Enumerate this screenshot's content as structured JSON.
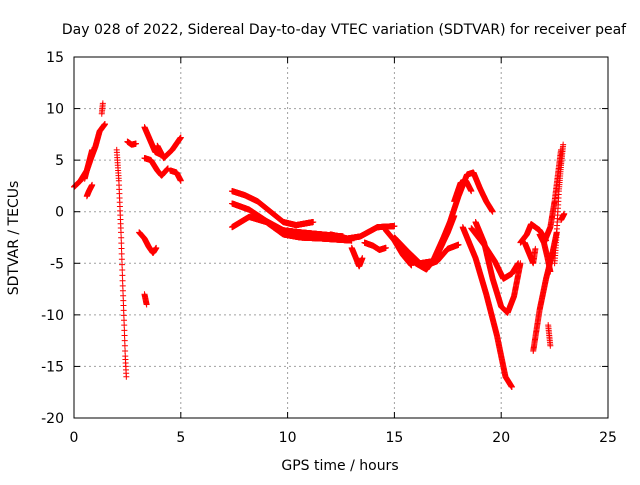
{
  "chart_data": {
    "type": "scatter",
    "title": "Day 028 of 2022, Sidereal Day-to-day VTEC variation (SDTVAR) for receiver peaf",
    "xlabel": "GPS time / hours",
    "ylabel": "SDTVAR / TECUs",
    "xlim": [
      0,
      25
    ],
    "ylim": [
      -20,
      15
    ],
    "xticks": [
      0,
      5,
      10,
      15,
      20,
      25
    ],
    "yticks": [
      -20,
      -15,
      -10,
      -5,
      0,
      5,
      10,
      15
    ],
    "grid": true,
    "marker": "+",
    "series": [
      {
        "name": "SDTVAR",
        "color": "#ff0000",
        "segments": [
          {
            "x0": 0.0,
            "x1": 1.45,
            "points": [
              [
                0.0,
                2.4
              ],
              [
                0.3,
                3.0
              ],
              [
                0.6,
                4.0
              ],
              [
                0.8,
                5.2
              ],
              [
                1.0,
                6.3
              ],
              [
                1.2,
                7.8
              ],
              [
                1.45,
                8.5
              ]
            ]
          },
          {
            "x0": 0.5,
            "x1": 0.85,
            "points": [
              [
                0.5,
                3.2
              ],
              [
                0.7,
                4.8
              ],
              [
                0.85,
                6.0
              ]
            ]
          },
          {
            "x0": 0.6,
            "x1": 0.85,
            "points": [
              [
                0.6,
                1.5
              ],
              [
                0.7,
                2.0
              ],
              [
                0.85,
                2.6
              ]
            ]
          },
          {
            "x0": 1.3,
            "x1": 1.35,
            "points": [
              [
                1.3,
                9.5
              ],
              [
                1.35,
                10.5
              ]
            ]
          },
          {
            "x0": 2.0,
            "x1": 2.45,
            "points": [
              [
                2.0,
                6.0
              ],
              [
                2.1,
                3.0
              ],
              [
                2.2,
                -2.0
              ],
              [
                2.28,
                -7.0
              ],
              [
                2.35,
                -11.0
              ],
              [
                2.4,
                -14.0
              ],
              [
                2.45,
                -16.0
              ]
            ]
          },
          {
            "x0": 2.5,
            "x1": 2.9,
            "points": [
              [
                2.5,
                6.8
              ],
              [
                2.7,
                6.5
              ],
              [
                2.9,
                6.6
              ]
            ]
          },
          {
            "x0": 3.05,
            "x1": 3.85,
            "points": [
              [
                3.05,
                -2.0
              ],
              [
                3.3,
                -2.6
              ],
              [
                3.5,
                -3.4
              ],
              [
                3.7,
                -4.0
              ],
              [
                3.85,
                -3.5
              ]
            ]
          },
          {
            "x0": 3.3,
            "x1": 3.4,
            "points": [
              [
                3.3,
                -8.0
              ],
              [
                3.4,
                -9.0
              ]
            ]
          },
          {
            "x0": 3.3,
            "x1": 4.1,
            "points": [
              [
                3.3,
                8.2
              ],
              [
                3.55,
                7.0
              ],
              [
                3.8,
                5.8
              ],
              [
                4.1,
                5.5
              ]
            ]
          },
          {
            "x0": 3.3,
            "x1": 4.4,
            "points": [
              [
                3.3,
                5.2
              ],
              [
                3.6,
                5.0
              ],
              [
                3.9,
                4.0
              ],
              [
                4.1,
                3.5
              ],
              [
                4.4,
                4.2
              ]
            ]
          },
          {
            "x0": 3.9,
            "x1": 5.0,
            "points": [
              [
                3.9,
                6.4
              ],
              [
                4.2,
                5.2
              ],
              [
                4.6,
                6.0
              ],
              [
                5.0,
                7.2
              ]
            ]
          },
          {
            "x0": 4.5,
            "x1": 5.0,
            "points": [
              [
                4.5,
                4.0
              ],
              [
                4.8,
                3.8
              ],
              [
                5.0,
                3.0
              ]
            ]
          },
          {
            "x0": 7.4,
            "x1": 11.2,
            "points": [
              [
                7.4,
                2.0
              ],
              [
                8.0,
                1.6
              ],
              [
                8.6,
                1.0
              ],
              [
                9.2,
                0.0
              ],
              [
                9.8,
                -1.0
              ],
              [
                10.4,
                -1.3
              ],
              [
                11.2,
                -1.0
              ]
            ]
          },
          {
            "x0": 7.4,
            "x1": 12.6,
            "points": [
              [
                7.4,
                0.8
              ],
              [
                8.2,
                0.2
              ],
              [
                9.0,
                -0.9
              ],
              [
                9.8,
                -1.8
              ],
              [
                10.6,
                -2.0
              ],
              [
                11.6,
                -2.2
              ],
              [
                12.6,
                -2.4
              ]
            ]
          },
          {
            "x0": 7.4,
            "x1": 13.0,
            "points": [
              [
                7.4,
                -1.5
              ],
              [
                8.2,
                -0.5
              ],
              [
                9.0,
                -1.0
              ],
              [
                9.8,
                -2.2
              ],
              [
                10.6,
                -2.5
              ],
              [
                11.6,
                -2.6
              ],
              [
                13.0,
                -2.8
              ]
            ]
          },
          {
            "x0": 12.0,
            "x1": 15.0,
            "points": [
              [
                12.0,
                -2.2
              ],
              [
                12.8,
                -2.6
              ],
              [
                13.4,
                -2.4
              ],
              [
                14.2,
                -1.5
              ],
              [
                15.0,
                -1.4
              ]
            ]
          },
          {
            "x0": 13.0,
            "x1": 13.5,
            "points": [
              [
                13.0,
                -3.5
              ],
              [
                13.2,
                -4.5
              ],
              [
                13.35,
                -5.3
              ],
              [
                13.5,
                -4.5
              ]
            ]
          },
          {
            "x0": 13.6,
            "x1": 14.6,
            "points": [
              [
                13.6,
                -3.0
              ],
              [
                14.0,
                -3.3
              ],
              [
                14.3,
                -3.7
              ],
              [
                14.6,
                -3.5
              ]
            ]
          },
          {
            "x0": 14.6,
            "x1": 15.8,
            "points": [
              [
                14.6,
                -1.8
              ],
              [
                15.0,
                -2.8
              ],
              [
                15.4,
                -4.2
              ],
              [
                15.8,
                -5.2
              ]
            ]
          },
          {
            "x0": 15.0,
            "x1": 17.6,
            "points": [
              [
                15.0,
                -2.5
              ],
              [
                15.6,
                -3.8
              ],
              [
                16.2,
                -5.0
              ],
              [
                16.8,
                -4.8
              ],
              [
                17.3,
                -2.5
              ],
              [
                17.6,
                -1.0
              ]
            ]
          },
          {
            "x0": 15.4,
            "x1": 17.8,
            "points": [
              [
                15.4,
                -3.5
              ],
              [
                16.0,
                -5.0
              ],
              [
                16.5,
                -5.6
              ],
              [
                17.0,
                -4.2
              ],
              [
                17.5,
                -2.0
              ],
              [
                17.8,
                -0.4
              ]
            ]
          },
          {
            "x0": 16.5,
            "x1": 18.0,
            "points": [
              [
                16.5,
                -5.2
              ],
              [
                17.0,
                -4.8
              ],
              [
                17.5,
                -3.6
              ],
              [
                18.0,
                -3.2
              ]
            ]
          },
          {
            "x0": 17.6,
            "x1": 19.0,
            "points": [
              [
                17.6,
                -1.0
              ],
              [
                18.0,
                1.5
              ],
              [
                18.4,
                3.6
              ],
              [
                18.7,
                3.8
              ],
              [
                19.0,
                2.3
              ]
            ]
          },
          {
            "x0": 17.8,
            "x1": 18.6,
            "points": [
              [
                17.8,
                1.0
              ],
              [
                18.1,
                2.8
              ],
              [
                18.35,
                3.0
              ],
              [
                18.6,
                2.0
              ]
            ]
          },
          {
            "x0": 19.0,
            "x1": 19.6,
            "points": [
              [
                19.0,
                2.3
              ],
              [
                19.3,
                1.0
              ],
              [
                19.6,
                0.0
              ]
            ]
          },
          {
            "x0": 18.2,
            "x1": 20.5,
            "points": [
              [
                18.2,
                -1.5
              ],
              [
                18.8,
                -4.5
              ],
              [
                19.3,
                -8.0
              ],
              [
                19.8,
                -12.0
              ],
              [
                20.2,
                -16.0
              ],
              [
                20.5,
                -17.0
              ]
            ]
          },
          {
            "x0": 18.8,
            "x1": 20.9,
            "points": [
              [
                18.8,
                -1.0
              ],
              [
                19.2,
                -3.0
              ],
              [
                19.6,
                -6.5
              ],
              [
                20.0,
                -9.2
              ],
              [
                20.3,
                -9.8
              ],
              [
                20.6,
                -8.2
              ],
              [
                20.9,
                -5.0
              ]
            ]
          },
          {
            "x0": 18.6,
            "x1": 20.8,
            "points": [
              [
                18.6,
                -1.6
              ],
              [
                19.2,
                -3.2
              ],
              [
                19.7,
                -4.8
              ],
              [
                20.1,
                -6.5
              ],
              [
                20.5,
                -6.0
              ],
              [
                20.8,
                -5.0
              ]
            ]
          },
          {
            "x0": 20.9,
            "x1": 22.1,
            "points": [
              [
                20.9,
                -3.0
              ],
              [
                21.2,
                -2.2
              ],
              [
                21.4,
                -1.2
              ],
              [
                21.8,
                -1.8
              ],
              [
                22.1,
                -2.8
              ]
            ]
          },
          {
            "x0": 21.1,
            "x1": 21.6,
            "points": [
              [
                21.1,
                -3.0
              ],
              [
                21.3,
                -4.0
              ],
              [
                21.5,
                -5.0
              ],
              [
                21.6,
                -3.6
              ]
            ]
          },
          {
            "x0": 21.5,
            "x1": 22.6,
            "points": [
              [
                21.5,
                -13.5
              ],
              [
                21.8,
                -9.5
              ],
              [
                22.1,
                -6.5
              ],
              [
                22.4,
                -4.0
              ],
              [
                22.6,
                -2.0
              ]
            ]
          },
          {
            "x0": 21.8,
            "x1": 22.3,
            "points": [
              [
                21.8,
                -2.2
              ],
              [
                22.0,
                -3.0
              ],
              [
                22.15,
                -4.3
              ],
              [
                22.3,
                -5.8
              ]
            ]
          },
          {
            "x0": 22.0,
            "x1": 22.8,
            "points": [
              [
                22.0,
                -3.0
              ],
              [
                22.3,
                -1.5
              ],
              [
                22.5,
                1.0
              ],
              [
                22.65,
                3.5
              ],
              [
                22.8,
                6.0
              ]
            ]
          },
          {
            "x0": 22.5,
            "x1": 22.9,
            "points": [
              [
                22.5,
                -5.0
              ],
              [
                22.6,
                -2.0
              ],
              [
                22.7,
                2.0
              ],
              [
                22.8,
                4.5
              ],
              [
                22.9,
                6.5
              ]
            ]
          },
          {
            "x0": 22.8,
            "x1": 22.95,
            "points": [
              [
                22.8,
                -0.8
              ],
              [
                22.95,
                -0.2
              ]
            ]
          },
          {
            "x0": 22.2,
            "x1": 22.3,
            "points": [
              [
                22.2,
                -11.0
              ],
              [
                22.3,
                -13.0
              ]
            ]
          }
        ]
      }
    ]
  }
}
